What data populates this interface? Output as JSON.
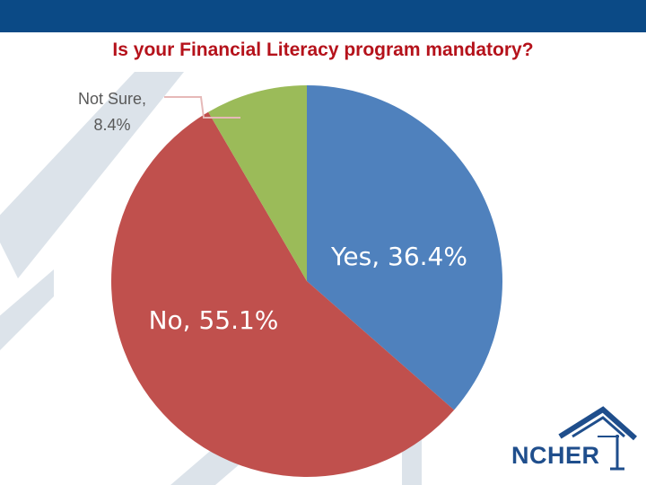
{
  "page": {
    "title": "Is your Financial Literacy program mandatory?"
  },
  "chart_data": {
    "type": "pie",
    "title": "Is your Financial Literacy program mandatory?",
    "slices": [
      {
        "label": "Yes",
        "value": 36.4,
        "display": "Yes, 36.4%",
        "color": "#4f81bd"
      },
      {
        "label": "No",
        "value": 55.1,
        "display": "No, 55.1%",
        "color": "#c0504d"
      },
      {
        "label": "Not Sure",
        "value": 8.4,
        "display_line1": "Not Sure,",
        "display_line2": "8.4%",
        "color": "#9bbb59"
      }
    ],
    "start": "12 o'clock",
    "direction": "clockwise"
  },
  "colors": {
    "top_bar": "#0b4a86",
    "title": "#b5121b",
    "background_stripes": "#dce3ea",
    "callout_text": "#595959",
    "leader_line": "#e6b9b8",
    "logo": "#1f4e8c"
  },
  "logo": {
    "text": "NCHER",
    "icon": "house-roof-icon"
  }
}
